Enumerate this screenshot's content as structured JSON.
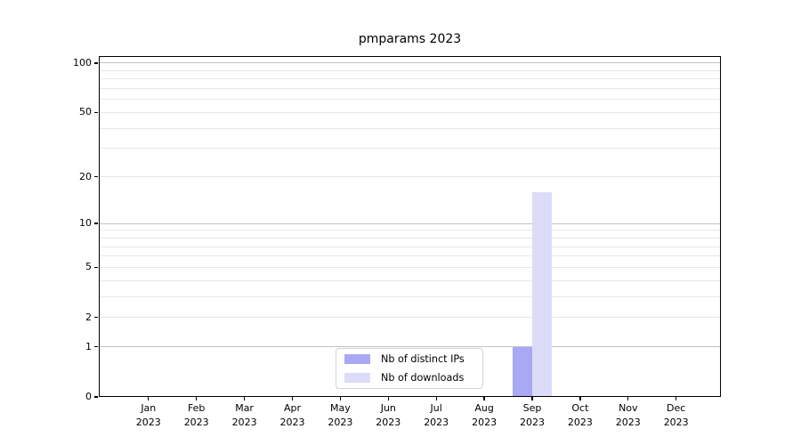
{
  "chart_data": {
    "type": "bar",
    "title": "pmparams 2023",
    "categories": [
      "Jan 2023",
      "Feb 2023",
      "Mar 2023",
      "Apr 2023",
      "May 2023",
      "Jun 2023",
      "Jul 2023",
      "Aug 2023",
      "Sep 2023",
      "Oct 2023",
      "Nov 2023",
      "Dec 2023"
    ],
    "series": [
      {
        "name": "Nb of distinct IPs",
        "color": "#a8a8f5",
        "values": [
          0,
          0,
          0,
          0,
          0,
          0,
          0,
          0,
          1,
          0,
          0,
          0
        ]
      },
      {
        "name": "Nb of downloads",
        "color": "#dcdcf8",
        "values": [
          0,
          0,
          0,
          0,
          0,
          0,
          0,
          0,
          16,
          0,
          0,
          0
        ]
      }
    ],
    "xlabel": "",
    "ylabel": "",
    "yscale": "symlog (y proportional to ln(1+v))",
    "ylim": [
      0,
      110.3
    ],
    "y_tick_values": [
      0,
      1,
      2,
      5,
      10,
      20,
      50,
      100
    ],
    "y_major_gridlines": [
      1,
      10,
      100
    ],
    "y_minor_gridlines": [
      2,
      3,
      4,
      5,
      6,
      7,
      8,
      9,
      20,
      30,
      40,
      50,
      60,
      70,
      80,
      90
    ],
    "grid": "horizontal only",
    "legend_position": "lower center inside axes",
    "colors": {
      "major_grid": "#c2c2c2",
      "minor_grid": "#e8e8e8",
      "spine": "#000000",
      "text": "#000000",
      "background": "#ffffff"
    }
  }
}
